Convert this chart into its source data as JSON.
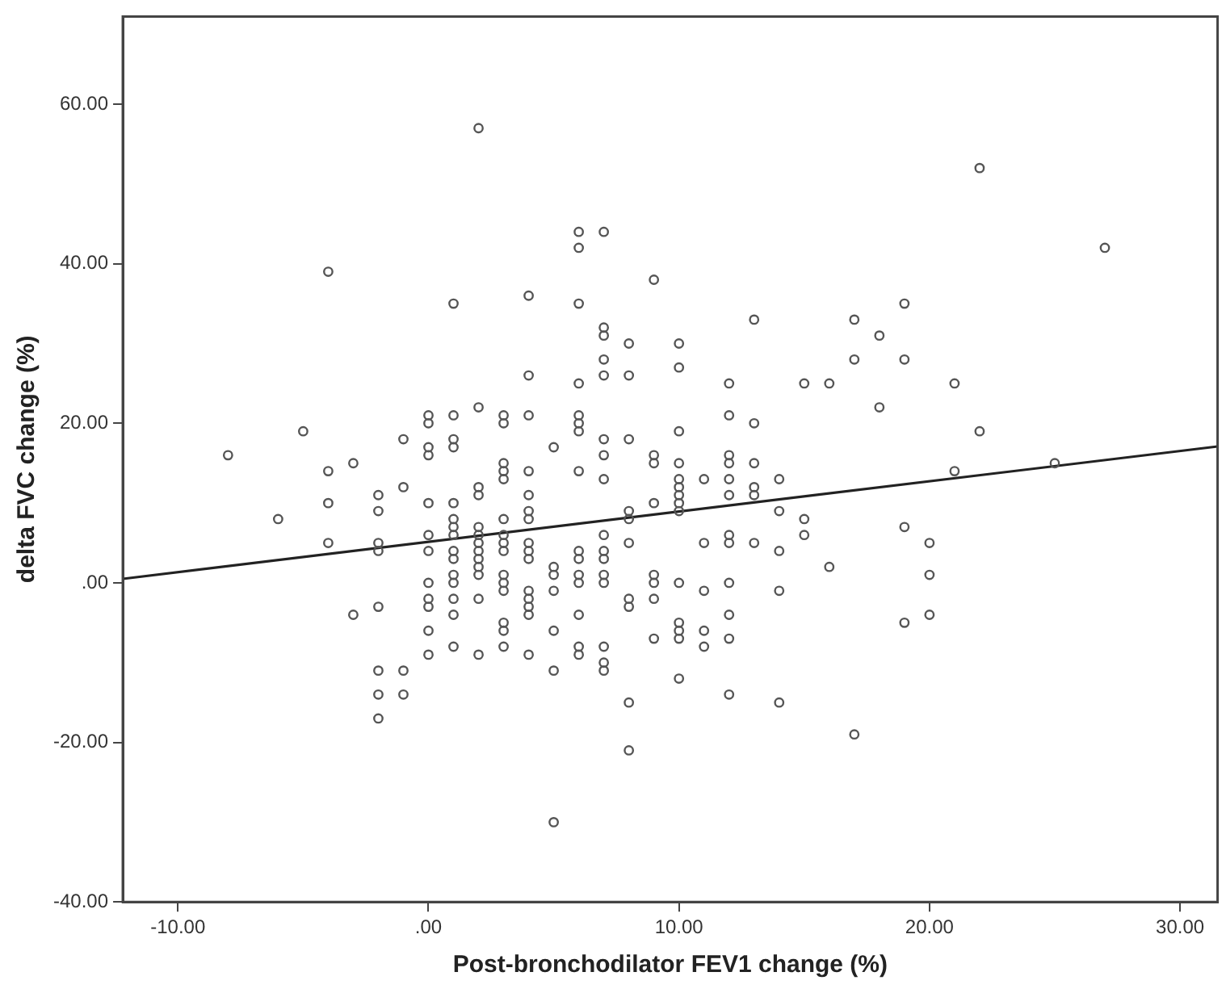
{
  "chart_data": {
    "type": "scatter",
    "xlabel": "Post-bronchodilator FEV1 change (%)",
    "ylabel": "delta FVC change (%)",
    "xlim": [
      -12.2,
      31.5
    ],
    "ylim": [
      -40,
      71
    ],
    "xticks": [
      {
        "value": -10,
        "label": "-10.00"
      },
      {
        "value": 0,
        "label": ".00"
      },
      {
        "value": 10,
        "label": "10.00"
      },
      {
        "value": 20,
        "label": "20.00"
      },
      {
        "value": 30,
        "label": "30.00"
      }
    ],
    "yticks": [
      {
        "value": -40,
        "label": "-40.00"
      },
      {
        "value": -20,
        "label": "-20.00"
      },
      {
        "value": 0,
        "label": ".00"
      },
      {
        "value": 20,
        "label": "20.00"
      },
      {
        "value": 40,
        "label": "40.00"
      },
      {
        "value": 60,
        "label": "60.00"
      }
    ],
    "grid": false,
    "legend": false,
    "marker": "circle",
    "series": [
      {
        "type": "scatter",
        "color": "#555555",
        "x": [
          -8,
          -6,
          -5,
          -4,
          -4,
          -4,
          -4,
          -3,
          -3,
          -2,
          -2,
          -2,
          -2,
          -2,
          -2,
          -2,
          -2,
          -1,
          -1,
          -1,
          -1,
          0,
          0,
          0,
          0,
          0,
          0,
          0,
          0,
          0,
          0,
          0,
          0,
          1,
          1,
          1,
          1,
          1,
          1,
          1,
          1,
          1,
          1,
          1,
          1,
          1,
          1,
          1,
          2,
          2,
          2,
          2,
          2,
          2,
          2,
          2,
          2,
          2,
          2,
          2,
          2,
          3,
          3,
          3,
          3,
          3,
          3,
          3,
          3,
          3,
          3,
          3,
          3,
          3,
          3,
          3,
          4,
          4,
          4,
          4,
          4,
          4,
          4,
          4,
          4,
          4,
          4,
          4,
          4,
          4,
          4,
          5,
          5,
          5,
          5,
          5,
          5,
          5,
          6,
          6,
          6,
          6,
          6,
          6,
          6,
          6,
          6,
          6,
          6,
          6,
          6,
          6,
          6,
          7,
          7,
          7,
          7,
          7,
          7,
          7,
          7,
          7,
          7,
          7,
          7,
          7,
          7,
          7,
          7,
          8,
          8,
          8,
          8,
          8,
          8,
          8,
          8,
          8,
          8,
          9,
          9,
          9,
          9,
          9,
          9,
          9,
          9,
          10,
          10,
          10,
          10,
          10,
          10,
          10,
          10,
          10,
          10,
          10,
          10,
          10,
          10,
          11,
          11,
          11,
          11,
          11,
          12,
          12,
          12,
          12,
          12,
          12,
          12,
          12,
          12,
          12,
          12,
          12,
          13,
          13,
          13,
          13,
          13,
          13,
          14,
          14,
          14,
          14,
          14,
          15,
          15,
          15,
          16,
          16,
          17,
          17,
          17,
          18,
          18,
          19,
          19,
          19,
          19,
          20,
          20,
          20,
          21,
          21,
          22,
          22,
          25,
          27
        ],
        "values": [
          16,
          8,
          19,
          39,
          14,
          10,
          5,
          15,
          -4,
          11,
          9,
          5,
          4,
          -3,
          -11,
          -14,
          -17,
          18,
          12,
          -11,
          -14,
          10,
          16,
          17,
          20,
          21,
          6,
          4,
          0,
          -2,
          -3,
          -6,
          -9,
          21,
          17,
          18,
          10,
          35,
          8,
          7,
          6,
          4,
          3,
          1,
          0,
          -2,
          -4,
          -8,
          57,
          22,
          12,
          11,
          7,
          6,
          5,
          4,
          3,
          2,
          1,
          -2,
          -9,
          21,
          20,
          15,
          14,
          13,
          8,
          6,
          5,
          4,
          1,
          0,
          -1,
          -5,
          -6,
          -8,
          36,
          26,
          21,
          14,
          11,
          9,
          8,
          5,
          4,
          3,
          -1,
          -2,
          -3,
          -4,
          -9,
          17,
          2,
          1,
          -1,
          -6,
          -11,
          -30,
          44,
          42,
          35,
          25,
          21,
          20,
          19,
          14,
          4,
          3,
          1,
          0,
          -4,
          -8,
          -9,
          44,
          32,
          31,
          28,
          26,
          18,
          16,
          13,
          6,
          4,
          3,
          1,
          0,
          -8,
          -10,
          -11,
          30,
          26,
          18,
          9,
          8,
          5,
          -2,
          -3,
          -15,
          -21,
          38,
          16,
          15,
          10,
          1,
          0,
          -2,
          -7,
          30,
          27,
          19,
          15,
          13,
          12,
          10,
          9,
          11,
          0,
          -5,
          -6,
          -7,
          -12,
          13,
          5,
          -1,
          -6,
          -8,
          25,
          21,
          16,
          15,
          13,
          11,
          6,
          5,
          0,
          -4,
          -7,
          -14,
          33,
          20,
          15,
          12,
          11,
          5,
          13,
          9,
          4,
          -1,
          -15,
          25,
          8,
          6,
          25,
          2,
          33,
          28,
          -19,
          31,
          22,
          35,
          28,
          7,
          -5,
          5,
          1,
          -4,
          25,
          14,
          52,
          19,
          15,
          42
        ]
      },
      {
        "type": "line",
        "color": "#222222",
        "marker": "none",
        "line_style": "solid",
        "x": [
          -12.2,
          31.5
        ],
        "values": [
          0.5,
          17.1
        ]
      }
    ]
  }
}
